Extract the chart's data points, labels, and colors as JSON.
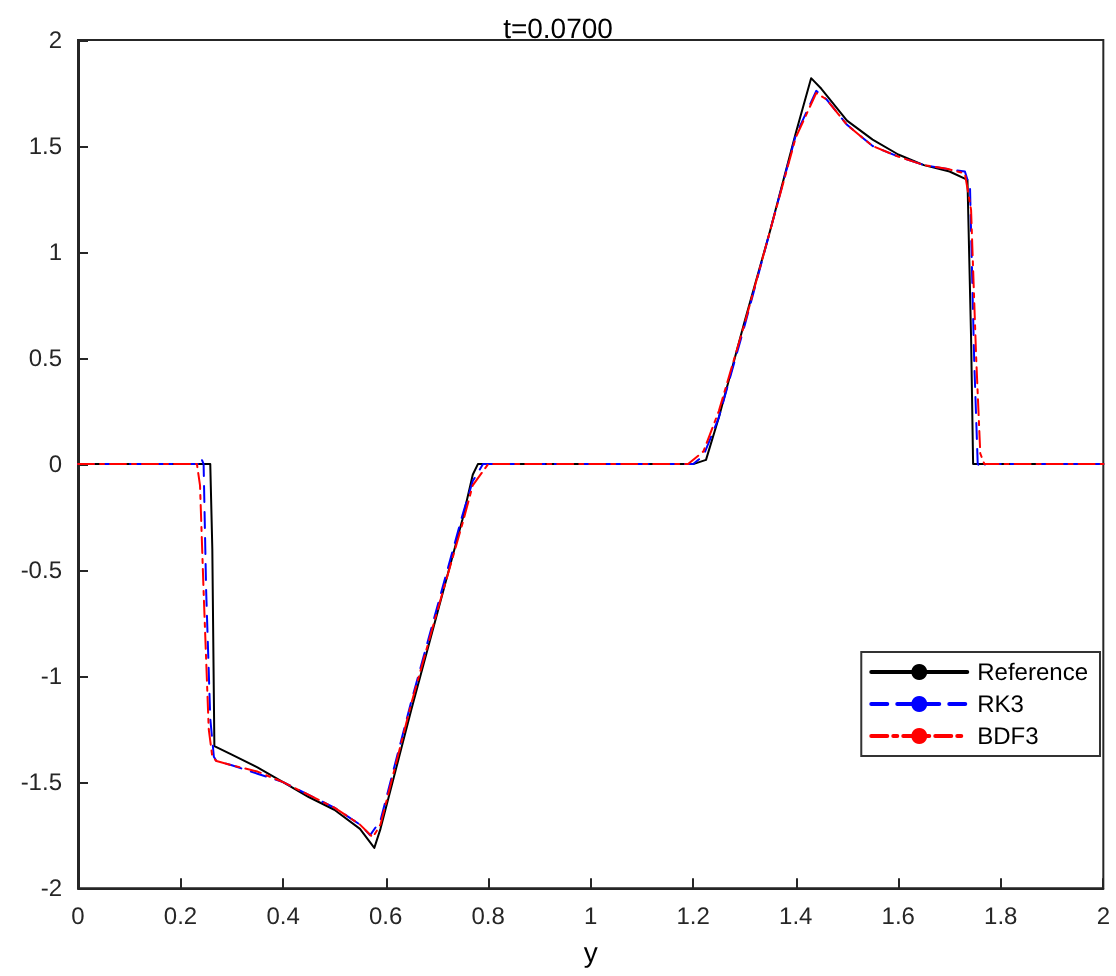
{
  "chart_data": {
    "type": "line",
    "title": "t=0.0700",
    "xlabel": "y",
    "xlim": [
      0,
      2
    ],
    "xticks": [
      0,
      0.2,
      0.4,
      0.6,
      0.8,
      1,
      1.2,
      1.4,
      1.6,
      1.8,
      2
    ],
    "ylim": [
      -2,
      2
    ],
    "yticks": [
      -2,
      -1.5,
      -1,
      -0.5,
      0,
      0.5,
      1,
      1.5,
      2
    ],
    "grid": false,
    "legend": "bottom right",
    "marker": "none",
    "series": [
      {
        "name": "Reference",
        "color": "#000000",
        "line_style": "solid",
        "x": [
          0,
          0.25,
          0.258,
          0.262,
          0.266,
          0.3,
          0.35,
          0.4,
          0.45,
          0.5,
          0.55,
          0.578,
          0.59,
          0.65,
          0.7,
          0.75,
          0.77,
          0.78,
          1.2,
          1.225,
          1.25,
          1.3,
          1.35,
          1.4,
          1.43,
          1.45,
          1.5,
          1.55,
          1.6,
          1.65,
          1.7,
          1.735,
          1.742,
          1.746,
          2
        ],
        "values": [
          0,
          0,
          0,
          -0.4,
          -1.33,
          -1.37,
          -1.43,
          -1.5,
          -1.57,
          -1.63,
          -1.72,
          -1.81,
          -1.72,
          -1.16,
          -0.71,
          -0.26,
          -0.05,
          0,
          0,
          0.02,
          0.22,
          0.67,
          1.1,
          1.56,
          1.82,
          1.77,
          1.62,
          1.53,
          1.46,
          1.41,
          1.38,
          1.34,
          0.6,
          0,
          0
        ]
      },
      {
        "name": "RK3",
        "color": "#0000ff",
        "line_style": "dashed",
        "x": [
          0,
          0.235,
          0.24,
          0.245,
          0.25,
          0.258,
          0.265,
          0.27,
          0.3,
          0.35,
          0.4,
          0.45,
          0.5,
          0.55,
          0.57,
          0.59,
          0.65,
          0.7,
          0.75,
          0.77,
          0.79,
          1.2,
          1.22,
          1.25,
          1.3,
          1.35,
          1.4,
          1.44,
          1.46,
          1.5,
          1.55,
          1.6,
          1.65,
          1.7,
          1.73,
          1.74,
          1.748,
          1.755,
          1.762,
          1.77,
          2
        ],
        "values": [
          0,
          0,
          0.03,
          0,
          -0.6,
          -1.2,
          -1.38,
          -1.4,
          -1.42,
          -1.46,
          -1.5,
          -1.56,
          -1.62,
          -1.7,
          -1.75,
          -1.68,
          -1.12,
          -0.68,
          -0.24,
          -0.08,
          0,
          0,
          0.04,
          0.22,
          0.65,
          1.1,
          1.55,
          1.76,
          1.72,
          1.6,
          1.5,
          1.45,
          1.41,
          1.39,
          1.38,
          1.3,
          0.5,
          0,
          -0.02,
          0,
          0
        ]
      },
      {
        "name": "BDF3",
        "color": "#ff0000",
        "line_style": "dashdot",
        "x": [
          0,
          0.232,
          0.238,
          0.245,
          0.255,
          0.262,
          0.27,
          0.3,
          0.35,
          0.4,
          0.45,
          0.5,
          0.55,
          0.575,
          0.59,
          0.65,
          0.7,
          0.75,
          0.77,
          0.8,
          1.19,
          1.22,
          1.25,
          1.3,
          1.35,
          1.4,
          1.44,
          1.46,
          1.5,
          1.55,
          1.6,
          1.65,
          1.7,
          1.73,
          1.742,
          1.752,
          1.76,
          1.768,
          2
        ],
        "values": [
          0,
          0,
          -0.1,
          -0.6,
          -1.25,
          -1.38,
          -1.4,
          -1.42,
          -1.45,
          -1.5,
          -1.56,
          -1.62,
          -1.7,
          -1.76,
          -1.7,
          -1.13,
          -0.7,
          -0.28,
          -0.1,
          0,
          0,
          0.06,
          0.25,
          0.66,
          1.1,
          1.54,
          1.75,
          1.72,
          1.6,
          1.5,
          1.45,
          1.41,
          1.39,
          1.37,
          1.2,
          0.5,
          0.05,
          0,
          0
        ]
      }
    ]
  }
}
